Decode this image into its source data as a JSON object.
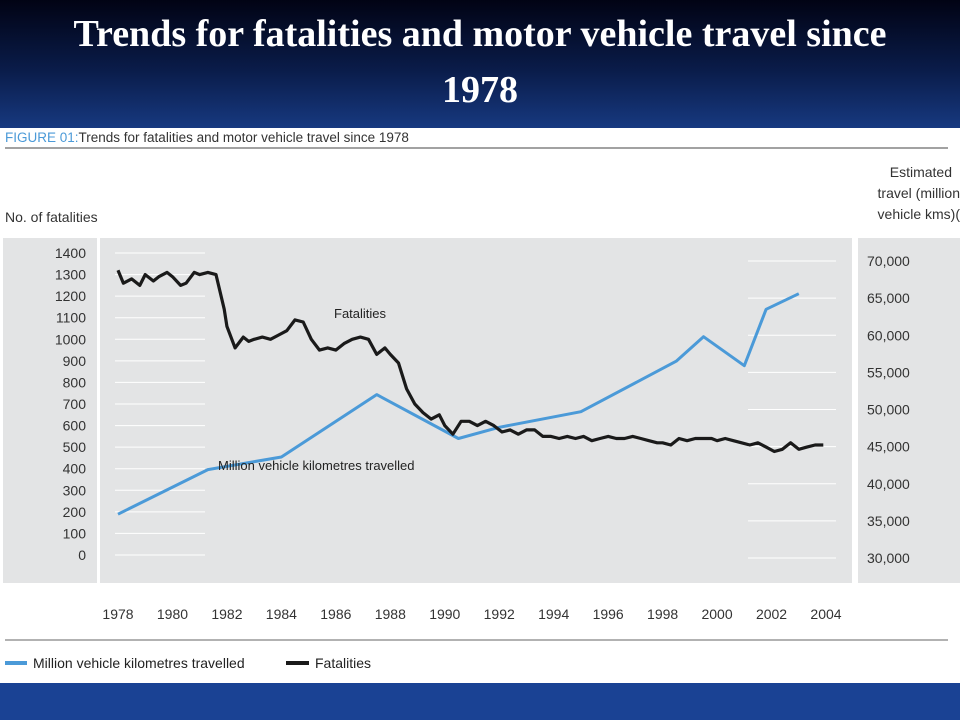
{
  "slide": {
    "title": "Trends for fatalities and motor vehicle travel since 1978"
  },
  "figure": {
    "prefix": "FIGURE 01:",
    "caption": "Trends for fatalities and motor vehicle travel since 1978"
  },
  "colors": {
    "travel": "#4b9ad8",
    "fatalities": "#1a1a1a",
    "plot_bg": "#e3e4e5",
    "figure_label": "#4b9ad8"
  },
  "chart_data": {
    "type": "line",
    "title": "Trends for fatalities and motor vehicle travel since 1978",
    "left_axis": {
      "label": "No. of fatalities",
      "range": [
        0,
        1400
      ],
      "ticks": [
        0,
        100,
        200,
        300,
        400,
        500,
        600,
        700,
        800,
        900,
        1000,
        1100,
        1200,
        1300,
        1400
      ],
      "tick_labels": [
        "0",
        "100",
        "200",
        "300",
        "400",
        "500",
        "600",
        "700",
        "800",
        "900",
        "1000",
        "1100",
        "1200",
        "1300",
        "1400"
      ]
    },
    "right_axis": {
      "label_lines": [
        "Estimated",
        "travel (million",
        "vehicle kms)("
      ],
      "range": [
        30000,
        70000
      ],
      "ticks": [
        30000,
        35000,
        40000,
        45000,
        50000,
        55000,
        60000,
        65000,
        70000
      ],
      "tick_labels": [
        "30,000",
        "35,000",
        "40,000",
        "45,000",
        "50,000",
        "55,000",
        "60,000",
        "65,000",
        "70,000"
      ]
    },
    "x_axis": {
      "range": [
        1978,
        2004
      ],
      "ticks": [
        1978,
        1980,
        1982,
        1984,
        1986,
        1988,
        1990,
        1992,
        1994,
        1996,
        1998,
        2000,
        2002,
        2004
      ],
      "tick_labels": [
        "1978",
        "1980",
        "1982",
        "1984",
        "1986",
        "1988",
        "1990",
        "1992",
        "1994",
        "1996",
        "1998",
        "2000",
        "2002",
        "2004"
      ]
    },
    "legend_position": "bottom",
    "series": [
      {
        "name": "Million vehicle kilometres travelled",
        "axis": "right",
        "x": [
          1978,
          1981.3,
          1984,
          1987.5,
          1990.5,
          1992,
          1995,
          1998.5,
          1999.5,
          2001,
          2001.8,
          2003
        ],
        "values": [
          35900,
          41900,
          43600,
          52000,
          46100,
          47600,
          49700,
          56500,
          59800,
          55900,
          63500,
          65600
        ]
      },
      {
        "name": "Fatalities",
        "axis": "left",
        "x": [
          1978,
          1978.2,
          1978.5,
          1978.8,
          1979,
          1979.3,
          1979.5,
          1979.8,
          1980,
          1980.3,
          1980.5,
          1980.8,
          1981,
          1981.3,
          1981.6,
          1981.9,
          1982,
          1982.3,
          1982.6,
          1982.8,
          1983,
          1983.3,
          1983.6,
          1983.9,
          1984.2,
          1984.5,
          1984.8,
          1985.1,
          1985.4,
          1985.7,
          1986,
          1986.3,
          1986.6,
          1986.9,
          1987.2,
          1987.5,
          1987.8,
          1988,
          1988.3,
          1988.6,
          1988.9,
          1989.2,
          1989.5,
          1989.8,
          1990,
          1990.3,
          1990.6,
          1990.9,
          1991.2,
          1991.5,
          1991.8,
          1992.1,
          1992.4,
          1992.7,
          1993,
          1993.3,
          1993.6,
          1993.9,
          1994.2,
          1994.5,
          1994.8,
          1995.1,
          1995.4,
          1995.7,
          1996,
          1996.3,
          1996.6,
          1996.9,
          1997.2,
          1997.5,
          1997.8,
          1998,
          1998.3,
          1998.6,
          1998.9,
          1999.2,
          1999.5,
          1999.8,
          2000,
          2000.3,
          2000.6,
          2000.9,
          2001.2,
          2001.5,
          2001.8,
          2002.1,
          2002.4,
          2002.7,
          2003,
          2003.3,
          2003.6,
          2003.9
        ],
        "values": [
          1320,
          1260,
          1280,
          1250,
          1300,
          1270,
          1290,
          1310,
          1290,
          1250,
          1260,
          1310,
          1300,
          1310,
          1300,
          1140,
          1060,
          960,
          1010,
          990,
          1000,
          1010,
          1000,
          1020,
          1040,
          1090,
          1080,
          1000,
          950,
          960,
          950,
          980,
          1000,
          1010,
          1000,
          930,
          960,
          930,
          890,
          770,
          700,
          660,
          630,
          650,
          600,
          560,
          620,
          620,
          600,
          620,
          600,
          570,
          580,
          560,
          580,
          580,
          550,
          550,
          540,
          550,
          540,
          550,
          530,
          540,
          550,
          540,
          540,
          550,
          540,
          530,
          520,
          520,
          510,
          540,
          530,
          540,
          540,
          540,
          530,
          540,
          530,
          520,
          510,
          520,
          500,
          480,
          490,
          520,
          490,
          500,
          510,
          510
        ]
      }
    ],
    "annotations": [
      {
        "text": "Fatalities",
        "series": "Fatalities"
      },
      {
        "text": "Million vehicle kilometres travelled",
        "series": "Million vehicle kilometres travelled"
      }
    ]
  }
}
